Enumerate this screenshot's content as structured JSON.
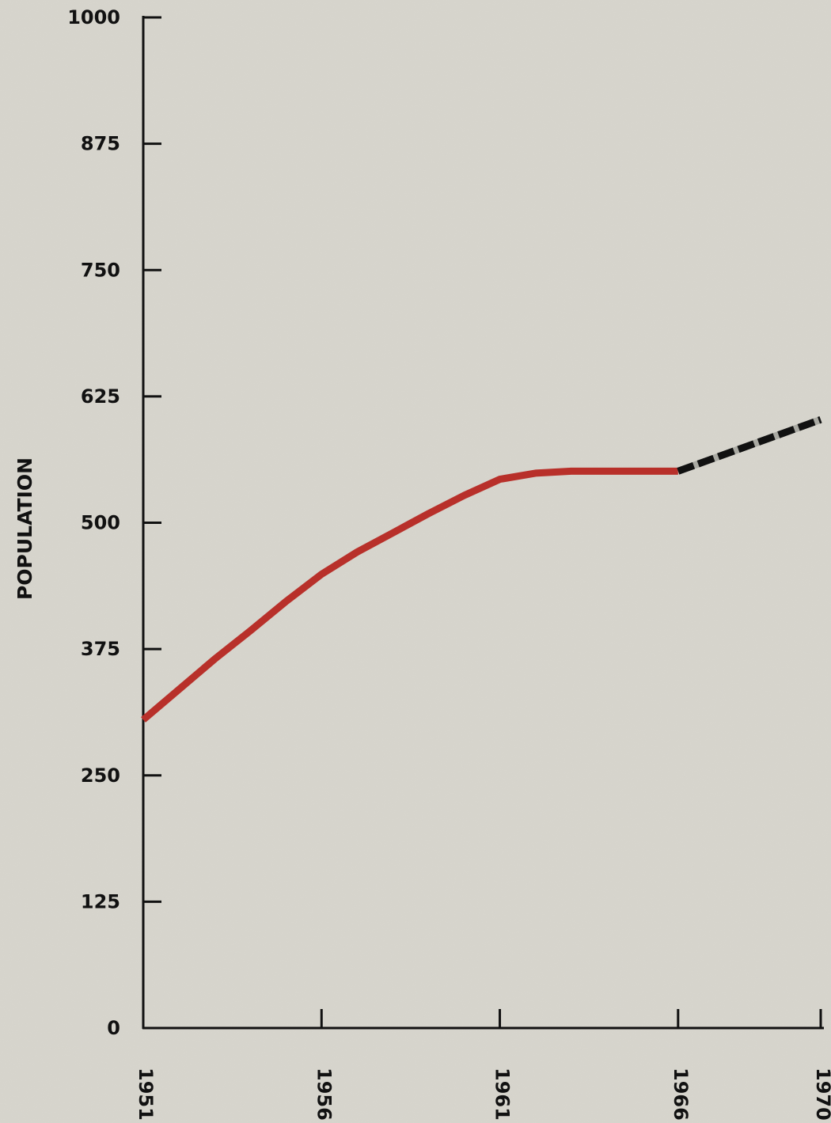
{
  "chart_data": {
    "type": "line",
    "title": "",
    "xlabel": "",
    "ylabel": "POPULATION",
    "ylim": [
      0,
      1000
    ],
    "xlim": [
      1951,
      1970
    ],
    "y_ticks": [
      "0",
      "125",
      "250",
      "375",
      "500",
      "625",
      "750",
      "875",
      "1000"
    ],
    "x_ticks": [
      "1951",
      "1956",
      "1961",
      "1966",
      "1970"
    ],
    "grid": false,
    "series": [
      {
        "style": "solid",
        "color": "#b8302a",
        "x": [
          1951,
          1952,
          1953,
          1954,
          1955,
          1956,
          1957,
          1958,
          1959,
          1960,
          1961,
          1962,
          1963,
          1964,
          1965,
          1966
        ],
        "y": [
          305,
          335,
          365,
          393,
          422,
          449,
          471,
          490,
          509,
          527,
          543,
          549,
          551,
          551,
          551,
          551
        ]
      },
      {
        "style": "dashed",
        "color": "#111111",
        "x": [
          1966,
          1970
        ],
        "y": [
          551,
          602
        ]
      }
    ]
  },
  "colors": {
    "background": "#d8d6ce",
    "axis": "#111111"
  }
}
